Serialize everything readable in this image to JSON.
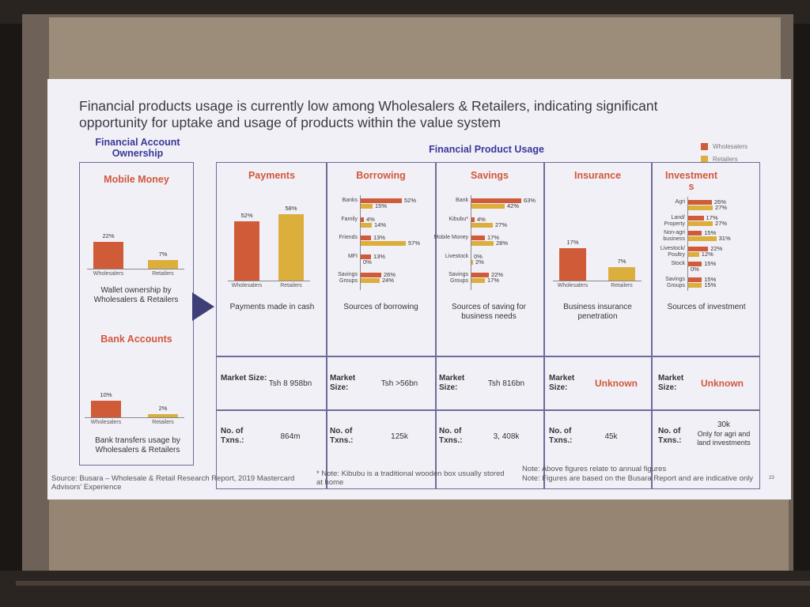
{
  "title": "Financial products usage is currently low among Wholesalers & Retailers, indicating significant opportunity for uptake and usage of products within the value system",
  "ownership_header": "Financial Account Ownership",
  "usage_header": "Financial Product Usage",
  "legend": {
    "wholesalers": "Wholesalers",
    "retailers": "Retailers"
  },
  "colors": {
    "wholesalers": "#cf5b38",
    "retailers": "#dcae3c",
    "frame": "#6c6c9a"
  },
  "mobile_money": {
    "title": "Mobile Money",
    "caption": "Wallet ownership by Wholesalers & Retailers"
  },
  "bank_accounts": {
    "title": "Bank Accounts",
    "caption": "Bank transfers usage by Wholesalers & Retailers"
  },
  "payments": {
    "title": "Payments",
    "caption": "Payments made in cash",
    "market_label": "Market Size:",
    "market_value": "Tsh 8 958bn",
    "txns_label": "No. of Txns.:",
    "txns_value": "864m"
  },
  "borrowing": {
    "title": "Borrowing",
    "caption": "Sources of borrowing",
    "market_label": "Market Size:",
    "market_value": "Tsh >56bn",
    "txns_label": "No. of Txns.:",
    "txns_value": "125k"
  },
  "savings": {
    "title": "Savings",
    "caption": "Sources of saving for business needs",
    "market_label": "Market Size:",
    "market_value": "Tsh 816bn",
    "txns_label": "No. of Txns.:",
    "txns_value": "3, 408k"
  },
  "insurance": {
    "title": "Insurance",
    "caption": "Business insurance penetration",
    "market_label": "Market Size:",
    "market_value": "Unknown",
    "txns_label": "No. of Txns.:",
    "txns_value": "45k"
  },
  "investments": {
    "title": "Investment s",
    "caption": "Sources of investment",
    "market_label": "Market Size:",
    "market_value": "Unknown",
    "txns_label": "No. of Txns.:",
    "txns_value": "30k",
    "txns_note": "Only for agri and land investments"
  },
  "footer": {
    "source": "Source: Busara – Wholesale & Retail Research Report, 2019 Mastercard Advisors' Experience",
    "kibubu_note": "* Note: Kibubu is a traditional wooden box usually stored at home",
    "annual_note": "Note: Above figures relate to annual figures",
    "indicative_note": "Note: Figures are based on the Busara Report and are indicative only",
    "page": "23"
  },
  "chart_data": [
    {
      "type": "bar",
      "title": "Mobile Money",
      "categories": [
        "Wholesalers",
        "Retailers"
      ],
      "values": [
        22,
        7
      ],
      "labels": [
        "22%",
        "7%"
      ]
    },
    {
      "type": "bar",
      "title": "Bank Accounts",
      "categories": [
        "Wholesalers",
        "Retailers"
      ],
      "values": [
        10,
        2
      ],
      "labels": [
        "10%",
        "2%"
      ]
    },
    {
      "type": "bar",
      "title": "Payments",
      "categories": [
        "Wholesalers",
        "Retailers"
      ],
      "values": [
        52,
        58
      ],
      "labels": [
        "52%",
        "58%"
      ]
    },
    {
      "type": "bar",
      "title": "Borrowing",
      "categories": [
        "Banks",
        "Family",
        "Friends",
        "MFI",
        "Savings Groups"
      ],
      "series": [
        {
          "name": "Wholesalers",
          "values": [
            52,
            4,
            13,
            13,
            26
          ],
          "labels": [
            "52%",
            "4%",
            "13%",
            "13%",
            "26%"
          ]
        },
        {
          "name": "Retailers",
          "values": [
            15,
            14,
            57,
            0,
            24
          ],
          "labels": [
            "15%",
            "14%",
            "57%",
            "0%",
            "24%"
          ]
        }
      ]
    },
    {
      "type": "bar",
      "title": "Savings",
      "categories": [
        "Bank",
        "Kibubu*",
        "Mobile Money",
        "Livestock",
        "Savings Groups"
      ],
      "series": [
        {
          "name": "Wholesalers",
          "values": [
            63,
            4,
            17,
            0,
            22
          ],
          "labels": [
            "63%",
            "4%",
            "17%",
            "0%",
            "22%"
          ]
        },
        {
          "name": "Retailers",
          "values": [
            42,
            27,
            28,
            2,
            17
          ],
          "labels": [
            "42%",
            "27%",
            "28%",
            "2%",
            "17%"
          ]
        }
      ]
    },
    {
      "type": "bar",
      "title": "Insurance",
      "categories": [
        "Wholesalers",
        "Retailers"
      ],
      "values": [
        17,
        7
      ],
      "labels": [
        "17%",
        "7%"
      ]
    },
    {
      "type": "bar",
      "title": "Investments",
      "categories": [
        "Agri",
        "Land/ Property",
        "Non-agri business",
        "Livestock/ Poultry",
        "Stock",
        "Savings Groups"
      ],
      "series": [
        {
          "name": "Wholesalers",
          "values": [
            26,
            17,
            15,
            22,
            15,
            15
          ],
          "labels": [
            "26%",
            "17%",
            "15%",
            "22%",
            "15%",
            "15%"
          ]
        },
        {
          "name": "Retailers",
          "values": [
            27,
            27,
            31,
            12,
            0,
            15
          ],
          "labels": [
            "27%",
            "27%",
            "31%",
            "12%",
            "0%",
            "15%"
          ]
        }
      ]
    }
  ]
}
